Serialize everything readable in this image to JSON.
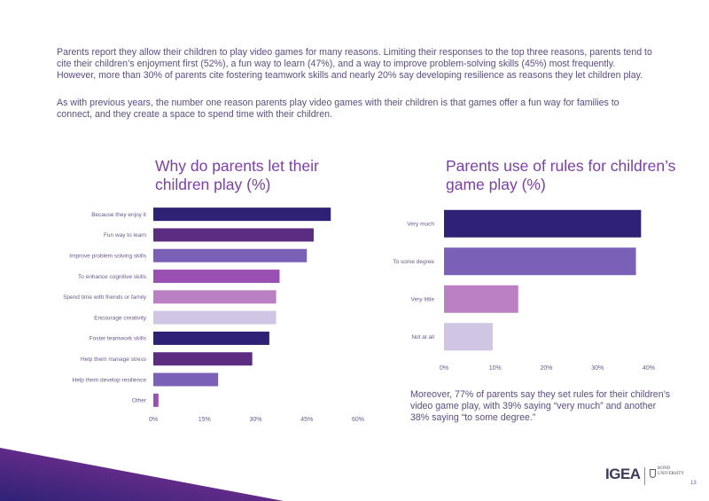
{
  "intro": {
    "paragraph1": "Parents report they allow their children to play video games for many reasons. Limiting their responses to the top three reasons, parents tend to cite their children’s enjoyment first (52%), a fun way to learn (47%), and a way to improve problem-solving skills (45%) most frequently. However, more than 30% of parents cite fostering teamwork skills and nearly 20% say developing resilience as reasons they let children play.",
    "paragraph2": "As with previous years, the number one reason parents play video games with their children is that games offer a fun way for families to connect, and they create a space to spend time with their children."
  },
  "note": "Moreover, 77% of parents say they set rules for their children’s video game play, with 39% saying “very much” and another 38% saying “to some degree.”",
  "footer": {
    "logo_igea": "IGEA",
    "logo_bond_line1": "BOND",
    "logo_bond_line2": "UNIVERSITY",
    "page_number": "13"
  },
  "chart_data": [
    {
      "type": "bar",
      "orientation": "horizontal",
      "title": "Why do parents let their children play (%)",
      "categories": [
        "Because they enjoy it",
        "Fun way to learn",
        "Improve problem solving skills",
        "To enhance cognitive skills",
        "Spend time with friends or family",
        "Encourage creativity",
        "Foster teamwork skills",
        "Help them manage stress",
        "Help them develop resilience",
        "Other"
      ],
      "values": [
        52,
        47,
        45,
        37,
        36,
        36,
        34,
        29,
        19,
        1.5
      ],
      "colors": [
        "#2f2276",
        "#5c2c82",
        "#7b60b8",
        "#9a4fb3",
        "#bb7fc4",
        "#d0c5e3",
        "#2f2276",
        "#5c2c82",
        "#7b60b8",
        "#9a4fb3"
      ],
      "xticks": [
        "0%",
        "15%",
        "30%",
        "45%",
        "60%"
      ],
      "xlim": [
        0,
        60
      ]
    },
    {
      "type": "bar",
      "orientation": "horizontal",
      "title": "Parents use of rules for children’s game play (%)",
      "categories": [
        "Very much",
        "To some degree",
        "Very little",
        "Not at all"
      ],
      "values": [
        38.5,
        37.5,
        14.5,
        9.5
      ],
      "colors": [
        "#2f2276",
        "#7b60b8",
        "#bb7fc4",
        "#d0c5e3"
      ],
      "xticks": [
        "0%",
        "10%",
        "20%",
        "30%",
        "40%"
      ],
      "xlim": [
        0,
        40
      ]
    }
  ]
}
